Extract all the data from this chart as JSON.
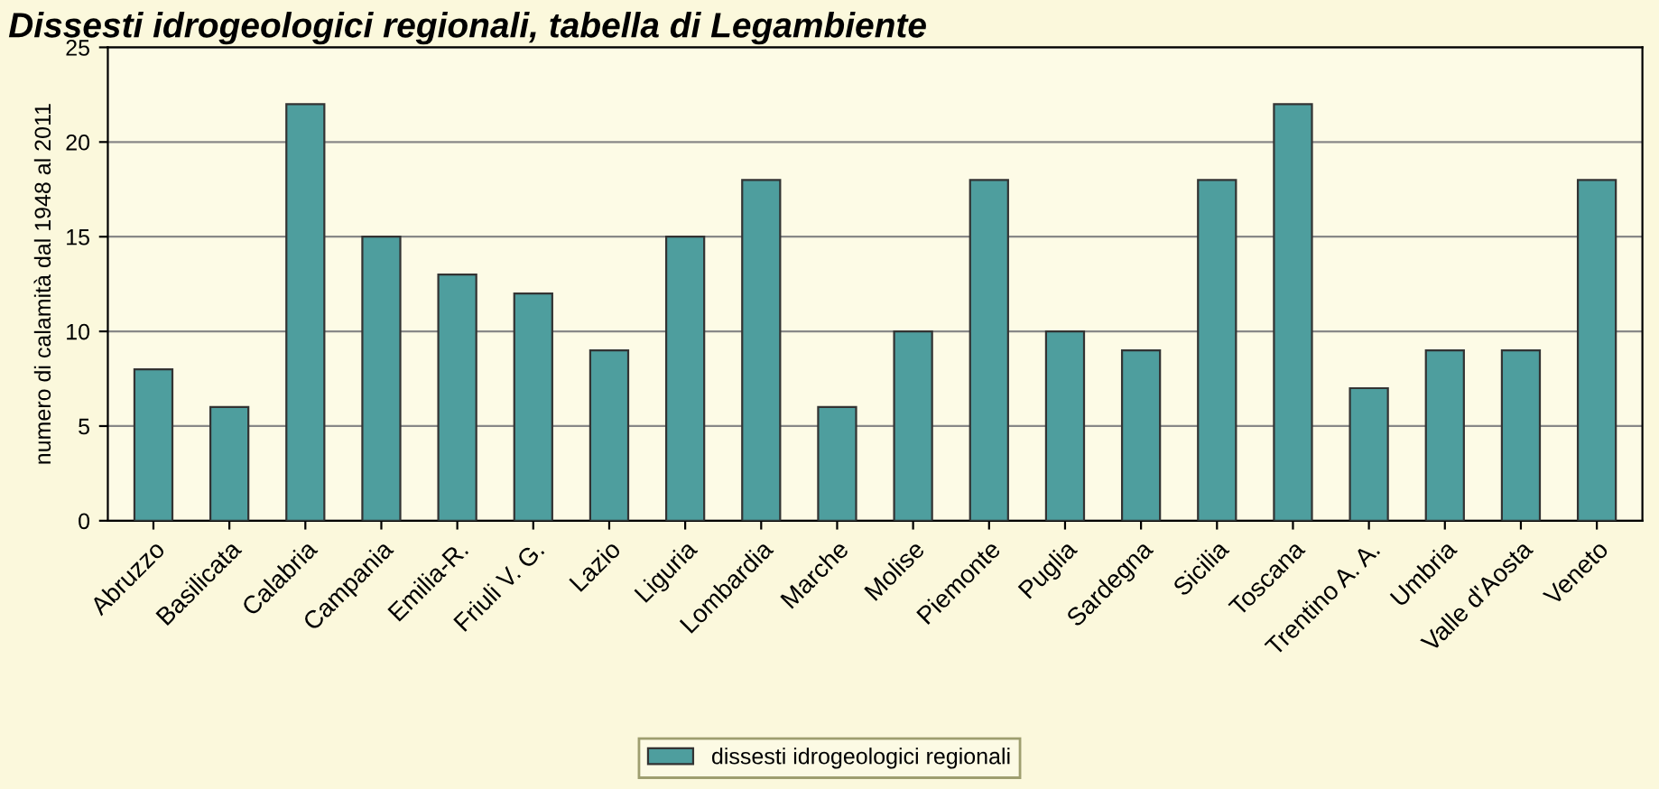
{
  "chart_data": {
    "type": "bar",
    "title": "Dissesti idrogeologici regionali, tabella di Legambiente",
    "ylabel": "numero di calamità dal 1948 al 2011",
    "categories": [
      "Abruzzo",
      "Basilicata",
      "Calabria",
      "Campania",
      "Emilia-R.",
      "Friuli V. G.",
      "Lazio",
      "Liguria",
      "Lombardia",
      "Marche",
      "Molise",
      "Piemonte",
      "Puglia",
      "Sardegna",
      "Sicilia",
      "Toscana",
      "Trentino A. A.",
      "Umbria",
      "Valle d'Aosta",
      "Veneto"
    ],
    "series": [
      {
        "name": "dissesti idrogeologici regionali",
        "color": "#4e9e9e",
        "values": [
          8,
          6,
          22,
          15,
          13,
          12,
          9,
          15,
          18,
          6,
          10,
          18,
          10,
          9,
          18,
          22,
          7,
          9,
          9,
          18
        ]
      }
    ],
    "ylim": [
      0,
      25
    ],
    "yticks": [
      0,
      5,
      10,
      15,
      20,
      25
    ],
    "grid": "y",
    "legend": "bottom"
  }
}
